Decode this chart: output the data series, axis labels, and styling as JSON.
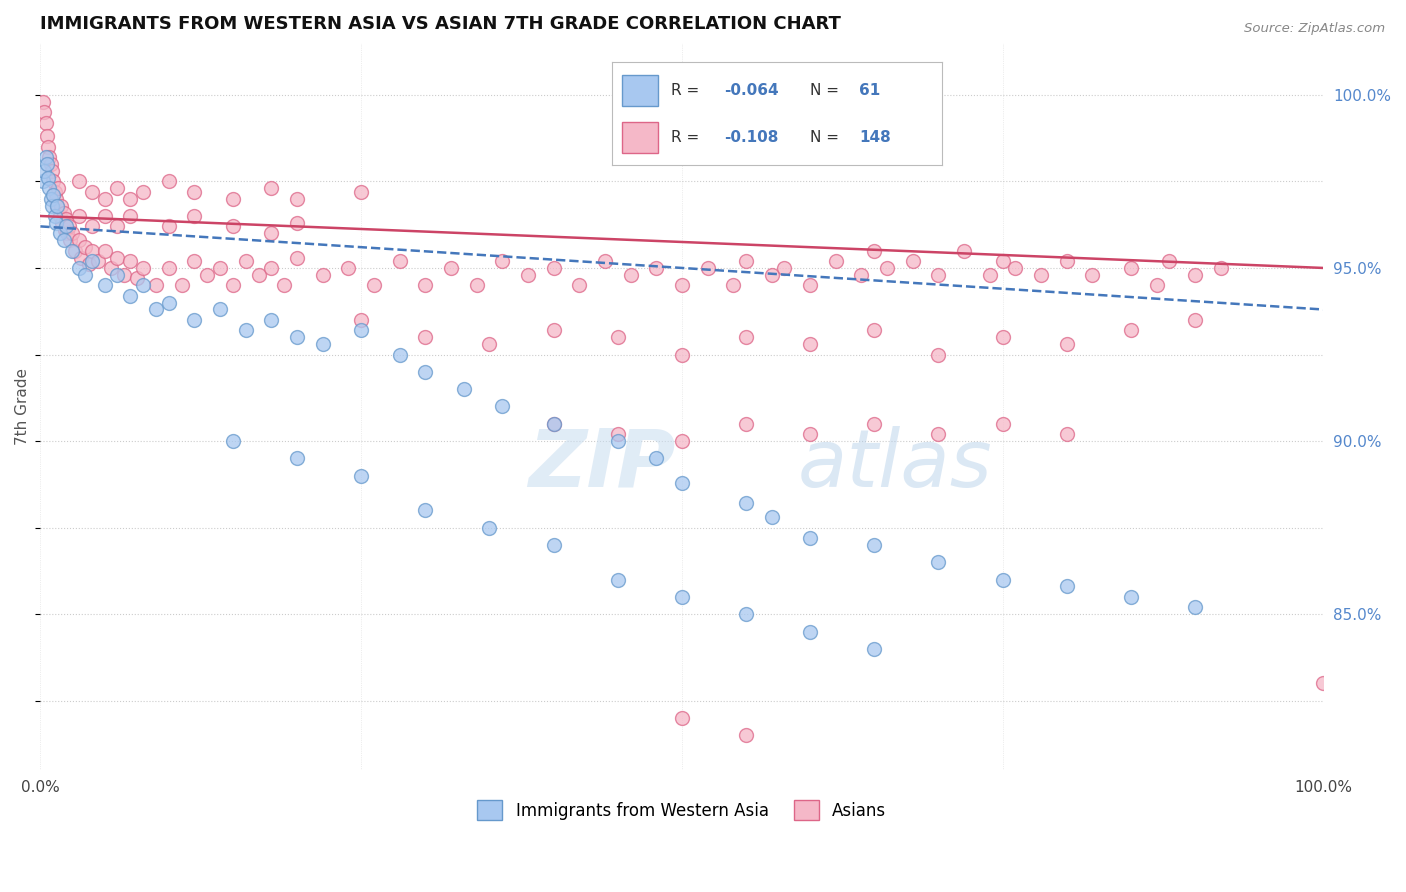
{
  "title": "IMMIGRANTS FROM WESTERN ASIA VS ASIAN 7TH GRADE CORRELATION CHART",
  "source": "Source: ZipAtlas.com",
  "ylabel": "7th Grade",
  "blue_label": "Immigrants from Western Asia",
  "pink_label": "Asians",
  "blue_R": -0.064,
  "blue_N": 61,
  "pink_R": -0.108,
  "pink_N": 148,
  "blue_color": "#a8c8f0",
  "pink_color": "#f5b8c8",
  "blue_edge_color": "#6699cc",
  "pink_edge_color": "#dd6688",
  "blue_line_color": "#4477bb",
  "pink_line_color": "#cc4466",
  "right_ytick_color": "#5588cc",
  "right_yticks": [
    85.0,
    90.0,
    95.0,
    100.0
  ],
  "watermark_zip": "ZIP",
  "watermark_atlas": "atlas",
  "xmin": 0.0,
  "xmax": 100.0,
  "ymin": 80.5,
  "ymax": 101.5,
  "blue_line_x0": 0.0,
  "blue_line_y0": 96.2,
  "blue_line_x1": 100.0,
  "blue_line_y1": 93.8,
  "pink_line_x0": 0.0,
  "pink_line_y0": 96.5,
  "pink_line_x1": 100.0,
  "pink_line_y1": 95.0,
  "blue_scatter": [
    [
      0.2,
      97.5
    ],
    [
      0.3,
      97.8
    ],
    [
      0.4,
      98.2
    ],
    [
      0.5,
      98.0
    ],
    [
      0.6,
      97.6
    ],
    [
      0.7,
      97.3
    ],
    [
      0.8,
      97.0
    ],
    [
      0.9,
      96.8
    ],
    [
      1.0,
      97.1
    ],
    [
      1.1,
      96.5
    ],
    [
      1.2,
      96.3
    ],
    [
      1.3,
      96.8
    ],
    [
      1.5,
      96.0
    ],
    [
      1.8,
      95.8
    ],
    [
      2.0,
      96.2
    ],
    [
      2.5,
      95.5
    ],
    [
      3.0,
      95.0
    ],
    [
      3.5,
      94.8
    ],
    [
      4.0,
      95.2
    ],
    [
      5.0,
      94.5
    ],
    [
      6.0,
      94.8
    ],
    [
      7.0,
      94.2
    ],
    [
      8.0,
      94.5
    ],
    [
      9.0,
      93.8
    ],
    [
      10.0,
      94.0
    ],
    [
      12.0,
      93.5
    ],
    [
      14.0,
      93.8
    ],
    [
      16.0,
      93.2
    ],
    [
      18.0,
      93.5
    ],
    [
      20.0,
      93.0
    ],
    [
      22.0,
      92.8
    ],
    [
      25.0,
      93.2
    ],
    [
      28.0,
      92.5
    ],
    [
      30.0,
      92.0
    ],
    [
      33.0,
      91.5
    ],
    [
      36.0,
      91.0
    ],
    [
      40.0,
      90.5
    ],
    [
      45.0,
      90.0
    ],
    [
      48.0,
      89.5
    ],
    [
      50.0,
      88.8
    ],
    [
      55.0,
      88.2
    ],
    [
      57.0,
      87.8
    ],
    [
      60.0,
      87.2
    ],
    [
      65.0,
      87.0
    ],
    [
      70.0,
      86.5
    ],
    [
      75.0,
      86.0
    ],
    [
      80.0,
      85.8
    ],
    [
      85.0,
      85.5
    ],
    [
      90.0,
      85.2
    ],
    [
      15.0,
      90.0
    ],
    [
      20.0,
      89.5
    ],
    [
      25.0,
      89.0
    ],
    [
      30.0,
      88.0
    ],
    [
      35.0,
      87.5
    ],
    [
      40.0,
      87.0
    ],
    [
      45.0,
      86.0
    ],
    [
      50.0,
      85.5
    ],
    [
      55.0,
      85.0
    ],
    [
      60.0,
      84.5
    ],
    [
      65.0,
      84.0
    ]
  ],
  "pink_scatter": [
    [
      0.2,
      99.8
    ],
    [
      0.3,
      99.5
    ],
    [
      0.4,
      99.2
    ],
    [
      0.5,
      98.8
    ],
    [
      0.6,
      98.5
    ],
    [
      0.7,
      98.2
    ],
    [
      0.8,
      98.0
    ],
    [
      0.9,
      97.8
    ],
    [
      1.0,
      97.5
    ],
    [
      1.1,
      97.2
    ],
    [
      1.2,
      97.0
    ],
    [
      1.3,
      96.8
    ],
    [
      1.4,
      97.3
    ],
    [
      1.5,
      96.5
    ],
    [
      1.6,
      96.8
    ],
    [
      1.7,
      96.3
    ],
    [
      1.8,
      96.6
    ],
    [
      1.9,
      96.1
    ],
    [
      2.0,
      96.4
    ],
    [
      2.1,
      96.0
    ],
    [
      2.2,
      96.2
    ],
    [
      2.3,
      95.8
    ],
    [
      2.5,
      96.0
    ],
    [
      2.7,
      95.5
    ],
    [
      3.0,
      95.8
    ],
    [
      3.2,
      95.3
    ],
    [
      3.5,
      95.6
    ],
    [
      3.8,
      95.1
    ],
    [
      4.0,
      95.5
    ],
    [
      4.5,
      95.2
    ],
    [
      5.0,
      95.5
    ],
    [
      5.5,
      95.0
    ],
    [
      6.0,
      95.3
    ],
    [
      6.5,
      94.8
    ],
    [
      7.0,
      95.2
    ],
    [
      7.5,
      94.7
    ],
    [
      8.0,
      95.0
    ],
    [
      9.0,
      94.5
    ],
    [
      10.0,
      95.0
    ],
    [
      11.0,
      94.5
    ],
    [
      12.0,
      95.2
    ],
    [
      13.0,
      94.8
    ],
    [
      14.0,
      95.0
    ],
    [
      15.0,
      94.5
    ],
    [
      16.0,
      95.2
    ],
    [
      17.0,
      94.8
    ],
    [
      18.0,
      95.0
    ],
    [
      19.0,
      94.5
    ],
    [
      20.0,
      95.3
    ],
    [
      22.0,
      94.8
    ],
    [
      24.0,
      95.0
    ],
    [
      26.0,
      94.5
    ],
    [
      28.0,
      95.2
    ],
    [
      30.0,
      94.5
    ],
    [
      32.0,
      95.0
    ],
    [
      34.0,
      94.5
    ],
    [
      36.0,
      95.2
    ],
    [
      38.0,
      94.8
    ],
    [
      40.0,
      95.0
    ],
    [
      42.0,
      94.5
    ],
    [
      44.0,
      95.2
    ],
    [
      46.0,
      94.8
    ],
    [
      48.0,
      95.0
    ],
    [
      50.0,
      94.5
    ],
    [
      52.0,
      95.0
    ],
    [
      54.0,
      94.5
    ],
    [
      55.0,
      95.2
    ],
    [
      57.0,
      94.8
    ],
    [
      58.0,
      95.0
    ],
    [
      60.0,
      94.5
    ],
    [
      62.0,
      95.2
    ],
    [
      64.0,
      94.8
    ],
    [
      65.0,
      95.5
    ],
    [
      66.0,
      95.0
    ],
    [
      68.0,
      95.2
    ],
    [
      70.0,
      94.8
    ],
    [
      72.0,
      95.5
    ],
    [
      74.0,
      94.8
    ],
    [
      75.0,
      95.2
    ],
    [
      76.0,
      95.0
    ],
    [
      78.0,
      94.8
    ],
    [
      80.0,
      95.2
    ],
    [
      82.0,
      94.8
    ],
    [
      85.0,
      95.0
    ],
    [
      87.0,
      94.5
    ],
    [
      88.0,
      95.2
    ],
    [
      90.0,
      94.8
    ],
    [
      92.0,
      95.0
    ],
    [
      3.0,
      97.5
    ],
    [
      4.0,
      97.2
    ],
    [
      5.0,
      97.0
    ],
    [
      6.0,
      97.3
    ],
    [
      7.0,
      97.0
    ],
    [
      8.0,
      97.2
    ],
    [
      10.0,
      97.5
    ],
    [
      12.0,
      97.2
    ],
    [
      15.0,
      97.0
    ],
    [
      18.0,
      97.3
    ],
    [
      20.0,
      97.0
    ],
    [
      25.0,
      97.2
    ],
    [
      3.0,
      96.5
    ],
    [
      4.0,
      96.2
    ],
    [
      5.0,
      96.5
    ],
    [
      6.0,
      96.2
    ],
    [
      7.0,
      96.5
    ],
    [
      10.0,
      96.2
    ],
    [
      12.0,
      96.5
    ],
    [
      15.0,
      96.2
    ],
    [
      18.0,
      96.0
    ],
    [
      20.0,
      96.3
    ],
    [
      25.0,
      93.5
    ],
    [
      30.0,
      93.0
    ],
    [
      35.0,
      92.8
    ],
    [
      40.0,
      93.2
    ],
    [
      45.0,
      93.0
    ],
    [
      50.0,
      92.5
    ],
    [
      55.0,
      93.0
    ],
    [
      60.0,
      92.8
    ],
    [
      65.0,
      93.2
    ],
    [
      70.0,
      92.5
    ],
    [
      75.0,
      93.0
    ],
    [
      80.0,
      92.8
    ],
    [
      85.0,
      93.2
    ],
    [
      90.0,
      93.5
    ],
    [
      40.0,
      90.5
    ],
    [
      45.0,
      90.2
    ],
    [
      50.0,
      90.0
    ],
    [
      55.0,
      90.5
    ],
    [
      60.0,
      90.2
    ],
    [
      65.0,
      90.5
    ],
    [
      70.0,
      90.2
    ],
    [
      75.0,
      90.5
    ],
    [
      80.0,
      90.2
    ],
    [
      50.0,
      82.0
    ],
    [
      55.0,
      81.5
    ],
    [
      100.0,
      83.0
    ]
  ]
}
